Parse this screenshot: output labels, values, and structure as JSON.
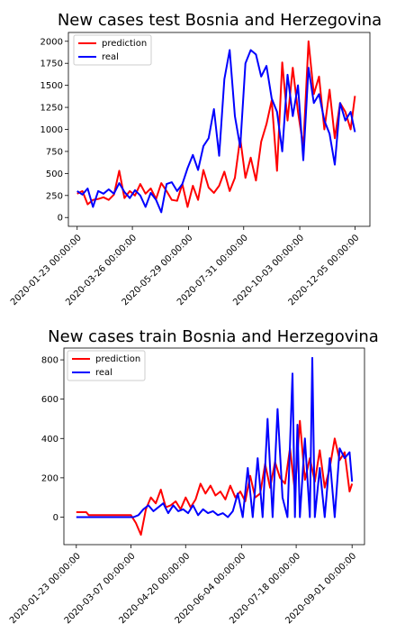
{
  "chart_data": [
    {
      "type": "line",
      "title": "New cases test Bosnia and Herzegovina",
      "xlabel": "",
      "ylabel": "",
      "ylim": [
        -100,
        2100
      ],
      "xlim": [
        -10,
        334
      ],
      "grid": false,
      "legend": "top-left",
      "x_ticks": [
        {
          "x": 0,
          "label": "2020-01-23 00:00:00"
        },
        {
          "x": 63,
          "label": "2020-03-26 00:00:00"
        },
        {
          "x": 127,
          "label": "2020-05-29 00:00:00"
        },
        {
          "x": 190,
          "label": "2020-07-31 00:00:00"
        },
        {
          "x": 254,
          "label": "2020-10-03 00:00:00"
        },
        {
          "x": 317,
          "label": "2020-12-05 00:00:00"
        }
      ],
      "y_ticks": [
        0,
        250,
        500,
        750,
        1000,
        1250,
        1500,
        1750,
        2000
      ],
      "series": [
        {
          "name": "prediction",
          "color": "#ff0000",
          "x": [
            0,
            6,
            12,
            18,
            24,
            30,
            36,
            42,
            48,
            54,
            60,
            66,
            72,
            78,
            84,
            90,
            96,
            102,
            108,
            114,
            120,
            126,
            132,
            138,
            144,
            150,
            156,
            162,
            168,
            174,
            180,
            186,
            192,
            198,
            204,
            210,
            216,
            222,
            228,
            234,
            240,
            246,
            252,
            258,
            264,
            270,
            276,
            282,
            288,
            294,
            300,
            306,
            312,
            317
          ],
          "values": [
            270,
            300,
            150,
            200,
            210,
            230,
            200,
            260,
            530,
            220,
            300,
            250,
            380,
            270,
            330,
            210,
            390,
            300,
            200,
            190,
            380,
            120,
            360,
            200,
            540,
            340,
            280,
            360,
            520,
            300,
            450,
            900,
            450,
            680,
            420,
            860,
            1060,
            1330,
            530,
            1760,
            1100,
            1700,
            1200,
            800,
            2000,
            1400,
            1600,
            1000,
            1450,
            900,
            1300,
            1200,
            1000,
            1380
          ]
        },
        {
          "name": "real",
          "color": "#0000ff",
          "x": [
            0,
            6,
            12,
            18,
            24,
            30,
            36,
            42,
            48,
            54,
            60,
            66,
            72,
            78,
            84,
            90,
            96,
            102,
            108,
            114,
            120,
            126,
            132,
            138,
            144,
            150,
            156,
            162,
            168,
            174,
            180,
            186,
            192,
            198,
            204,
            210,
            216,
            222,
            228,
            234,
            240,
            246,
            252,
            258,
            264,
            270,
            276,
            282,
            288,
            294,
            300,
            306,
            312,
            317
          ],
          "values": [
            300,
            260,
            330,
            120,
            300,
            270,
            320,
            270,
            390,
            290,
            220,
            310,
            250,
            120,
            280,
            200,
            60,
            380,
            400,
            300,
            380,
            560,
            710,
            540,
            810,
            900,
            1230,
            700,
            1570,
            1900,
            1150,
            800,
            1750,
            1900,
            1850,
            1600,
            1720,
            1350,
            1200,
            750,
            1620,
            1150,
            1500,
            650,
            1700,
            1300,
            1400,
            1100,
            950,
            600,
            1300,
            1100,
            1200,
            970
          ]
        }
      ]
    },
    {
      "type": "line",
      "title": "New cases train Bosnia and Herzegovina",
      "xlabel": "",
      "ylabel": "",
      "ylim": [
        -140,
        860
      ],
      "xlim": [
        -10,
        232
      ],
      "grid": false,
      "legend": "top-left",
      "x_ticks": [
        {
          "x": 0,
          "label": "2020-01-23 00:00:00"
        },
        {
          "x": 44,
          "label": "2020-03-07 00:00:00"
        },
        {
          "x": 88,
          "label": "2020-04-20 00:00:00"
        },
        {
          "x": 133,
          "label": "2020-06-04 00:00:00"
        },
        {
          "x": 177,
          "label": "2020-07-18 00:00:00"
        },
        {
          "x": 222,
          "label": "2020-09-01 00:00:00"
        }
      ],
      "y_ticks": [
        0,
        200,
        400,
        600,
        800
      ],
      "series": [
        {
          "name": "prediction",
          "color": "#ff0000",
          "x": [
            0,
            8,
            10,
            20,
            30,
            40,
            44,
            48,
            52,
            56,
            60,
            64,
            68,
            72,
            76,
            80,
            84,
            88,
            92,
            96,
            100,
            104,
            108,
            112,
            116,
            120,
            124,
            128,
            132,
            136,
            140,
            144,
            148,
            152,
            156,
            160,
            164,
            168,
            172,
            176,
            180,
            184,
            188,
            192,
            196,
            200,
            204,
            208,
            212,
            216,
            220,
            222
          ],
          "values": [
            25,
            25,
            10,
            10,
            10,
            10,
            10,
            -30,
            -90,
            40,
            100,
            70,
            140,
            50,
            60,
            80,
            40,
            100,
            50,
            90,
            170,
            120,
            160,
            110,
            130,
            90,
            160,
            100,
            130,
            80,
            210,
            100,
            120,
            270,
            150,
            280,
            200,
            170,
            350,
            130,
            490,
            190,
            300,
            180,
            340,
            150,
            250,
            400,
            290,
            330,
            130,
            170
          ]
        },
        {
          "name": "real",
          "color": "#0000ff",
          "x": [
            0,
            10,
            20,
            30,
            40,
            46,
            50,
            54,
            58,
            62,
            66,
            70,
            74,
            78,
            82,
            86,
            90,
            94,
            98,
            102,
            106,
            110,
            114,
            118,
            122,
            126,
            130,
            134,
            138,
            142,
            146,
            150,
            154,
            158,
            162,
            166,
            170,
            174,
            176,
            178,
            180,
            184,
            188,
            190,
            192,
            196,
            200,
            204,
            208,
            212,
            216,
            220,
            222
          ],
          "values": [
            0,
            0,
            0,
            0,
            0,
            0,
            10,
            40,
            60,
            30,
            50,
            70,
            20,
            60,
            30,
            40,
            20,
            60,
            10,
            40,
            20,
            30,
            10,
            20,
            0,
            30,
            120,
            0,
            250,
            0,
            300,
            0,
            500,
            0,
            550,
            100,
            0,
            730,
            0,
            470,
            0,
            400,
            0,
            810,
            0,
            250,
            0,
            300,
            0,
            350,
            300,
            330,
            180
          ]
        }
      ]
    }
  ]
}
